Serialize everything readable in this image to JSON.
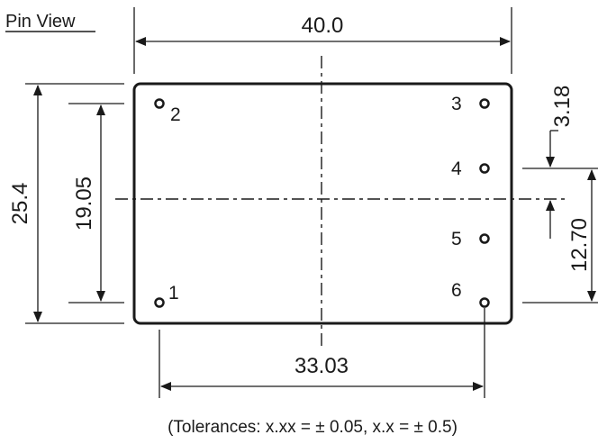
{
  "title": "Pin View",
  "dimensions": {
    "width": "40.0",
    "height": "25.4",
    "pin_span_vertical": "19.05",
    "pin_span_horizontal": "33.03",
    "pin_offset_small": "3.18",
    "pin_offset_right": "12.70"
  },
  "pins": [
    "1",
    "2",
    "3",
    "4",
    "5",
    "6"
  ],
  "tolerance_note": "(Tolerances: x.xx = ± 0.05, x.x = ± 0.5)",
  "colors": {
    "line": "#1a1a1a",
    "background": "#ffffff"
  }
}
